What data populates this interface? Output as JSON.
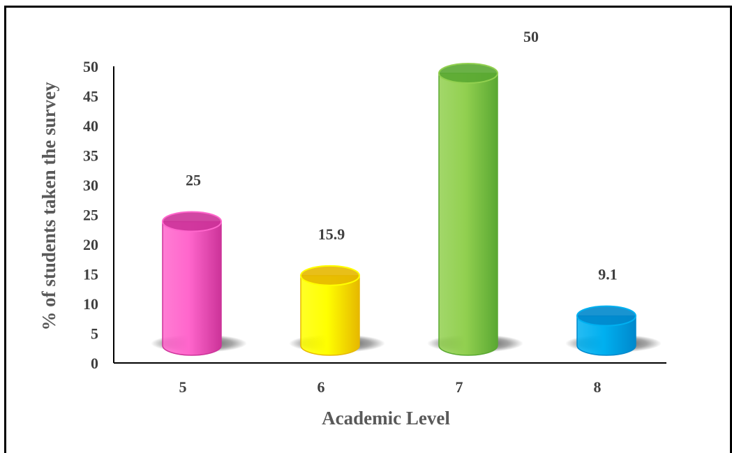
{
  "chart_data": {
    "type": "bar",
    "categories": [
      "5",
      "6",
      "7",
      "8"
    ],
    "values": [
      25,
      15.9,
      50,
      9.1
    ],
    "data_labels": [
      "25",
      "15.9",
      "50",
      "9.1"
    ],
    "title": "",
    "xlabel": "Academic Level",
    "ylabel": "% of students taken the survey",
    "ylim": [
      0,
      50
    ],
    "yticks": [
      0,
      5,
      10,
      15,
      20,
      25,
      30,
      35,
      40,
      45,
      50
    ],
    "grid": false,
    "legend": "none",
    "bar_style": "3d-cylinder",
    "colors": [
      "#ff66cc",
      "#ffff00",
      "#92d050",
      "#00b0f0"
    ],
    "edge_colors": [
      "#cc3399",
      "#e6b800",
      "#5aa832",
      "#0088cc"
    ],
    "text_color": "#404040"
  }
}
